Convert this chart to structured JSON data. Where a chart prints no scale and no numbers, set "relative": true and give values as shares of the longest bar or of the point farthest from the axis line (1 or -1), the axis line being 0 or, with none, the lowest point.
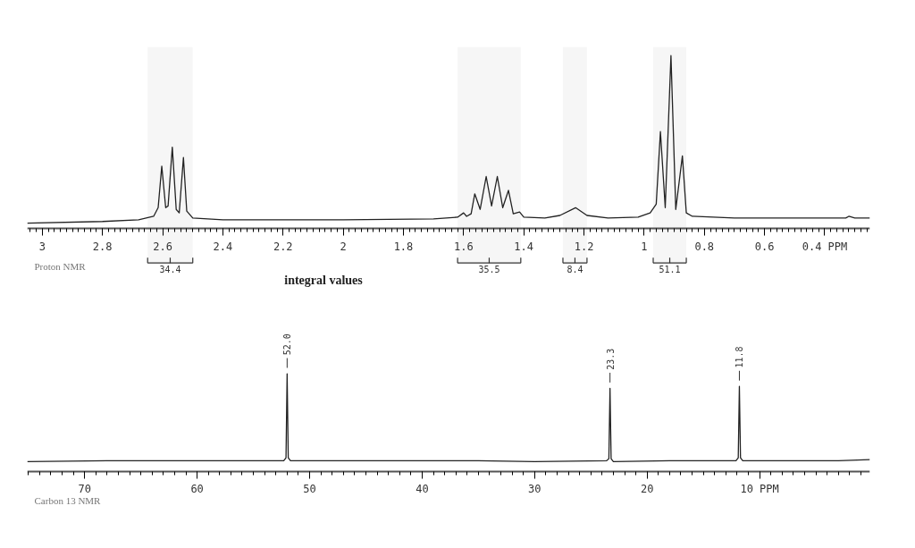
{
  "chart_data": [
    {
      "type": "line",
      "relative": true,
      "tick_labels": "x",
      "xlim": [
        3.05,
        0.25
      ],
      "xticks": [
        3.0,
        2.8,
        2.6,
        2.4,
        2.2,
        2.0,
        1.8,
        1.6,
        1.4,
        1.2,
        1.0,
        0.8,
        0.6,
        {
          "value": 0.4,
          "label": "0.4 PPM"
        }
      ],
      "series": [
        {
          "color": "#222222",
          "x": [
            3.05,
            2.8,
            2.68,
            2.63,
            2.615,
            2.603,
            2.59,
            2.582,
            2.568,
            2.555,
            2.545,
            2.531,
            2.52,
            2.5,
            2.4,
            2.0,
            1.7,
            1.62,
            1.6,
            1.59,
            1.575,
            1.563,
            1.545,
            1.525,
            1.507,
            1.488,
            1.47,
            1.451,
            1.435,
            1.414,
            1.4,
            1.33,
            1.28,
            1.228,
            1.19,
            1.12,
            1.02,
            0.98,
            0.96,
            0.946,
            0.93,
            0.911,
            0.895,
            0.873,
            0.86,
            0.84,
            0.7,
            0.5,
            0.33,
            0.32,
            0.3,
            0.25
          ],
          "values": [
            0.03,
            0.04,
            0.05,
            0.07,
            0.12,
            0.36,
            0.12,
            0.13,
            0.47,
            0.11,
            0.09,
            0.41,
            0.1,
            0.06,
            0.05,
            0.05,
            0.055,
            0.065,
            0.09,
            0.07,
            0.085,
            0.2,
            0.11,
            0.3,
            0.13,
            0.3,
            0.12,
            0.22,
            0.085,
            0.095,
            0.065,
            0.06,
            0.075,
            0.12,
            0.075,
            0.06,
            0.065,
            0.09,
            0.14,
            0.56,
            0.12,
            1.0,
            0.11,
            0.42,
            0.09,
            0.07,
            0.06,
            0.06,
            0.06,
            0.07,
            0.06,
            0.06
          ]
        }
      ],
      "bands": [
        {
          "axis": "x",
          "from": 2.65,
          "to": 2.5,
          "label": "34.4"
        },
        {
          "axis": "x",
          "from": 1.62,
          "to": 1.41,
          "label": "35.5"
        },
        {
          "axis": "x",
          "from": 1.27,
          "to": 1.19,
          "label": "8.4"
        },
        {
          "axis": "x",
          "from": 0.97,
          "to": 0.86,
          "label": "51.1"
        }
      ],
      "annotations": [
        "Proton NMR",
        "integral values"
      ]
    },
    {
      "type": "line",
      "relative": true,
      "tick_labels": "x",
      "xlim": [
        75.1,
        0.2
      ],
      "xticks": [
        70,
        60,
        50,
        40,
        30,
        20,
        {
          "value": 10,
          "label": "10 PPM"
        }
      ],
      "series": [
        {
          "color": "#222222",
          "x": [
            75.1,
            68,
            60,
            55,
            52.3,
            52.1,
            52.0,
            51.9,
            51.7,
            45,
            40,
            35,
            30,
            23.6,
            23.4,
            23.3,
            23.2,
            23.0,
            18,
            12.1,
            11.9,
            11.8,
            11.7,
            11.5,
            7,
            3,
            0.2
          ],
          "values": [
            0.1,
            0.11,
            0.11,
            0.11,
            0.11,
            0.14,
            1.0,
            0.14,
            0.11,
            0.11,
            0.11,
            0.11,
            0.1,
            0.11,
            0.13,
            0.85,
            0.13,
            0.1,
            0.11,
            0.11,
            0.14,
            0.87,
            0.14,
            0.11,
            0.11,
            0.11,
            0.12
          ]
        }
      ],
      "annotations": [
        {
          "text": "52.0",
          "x": 52.0,
          "y": 1.0
        },
        {
          "text": "23.3",
          "x": 23.3,
          "y": 0.85
        },
        {
          "text": "11.8",
          "x": 11.8,
          "y": 0.87
        },
        "Carbon 13 NMR"
      ]
    }
  ]
}
